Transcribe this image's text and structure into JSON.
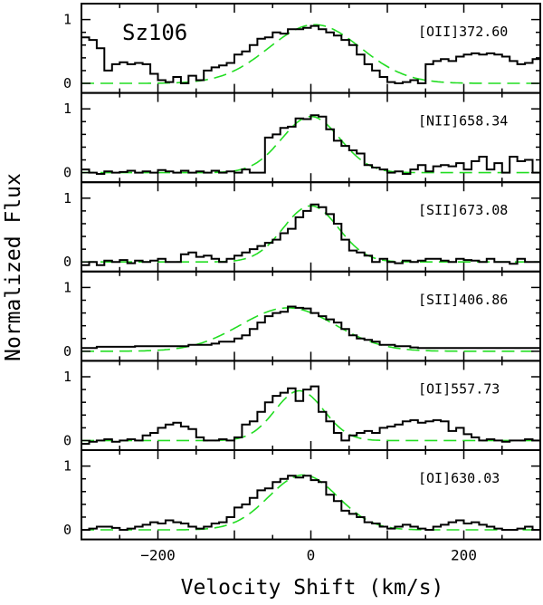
{
  "chart_data": {
    "type": "line",
    "object_label": "Sz106",
    "xlabel": "Velocity Shift (km/s)",
    "ylabel": "Normalized Flux",
    "xlim": [
      -300,
      300
    ],
    "x_ticks": [
      -200,
      0,
      200
    ],
    "x_tick_labels": [
      "−200",
      "0",
      "200"
    ],
    "y_ticks": [
      0,
      1
    ],
    "y_tick_labels": [
      "0",
      "1"
    ],
    "colors": {
      "observed": "#000000",
      "fit": "#22dd22"
    },
    "panels": [
      {
        "line": "[OII]372.60",
        "ylim": [
          -0.15,
          1.25
        ],
        "fit": {
          "amplitude": 0.92,
          "center": 5,
          "sigma": 60
        },
        "observed": {
          "x": [
            -300,
            -290,
            -280,
            -270,
            -260,
            -250,
            -240,
            -230,
            -220,
            -210,
            -200,
            -190,
            -180,
            -170,
            -160,
            -150,
            -140,
            -130,
            -120,
            -110,
            -100,
            -90,
            -80,
            -70,
            -60,
            -50,
            -40,
            -30,
            -20,
            -10,
            0,
            10,
            20,
            30,
            40,
            50,
            60,
            70,
            80,
            90,
            100,
            110,
            120,
            130,
            140,
            150,
            160,
            170,
            180,
            190,
            200,
            210,
            220,
            230,
            240,
            250,
            260,
            270,
            280,
            290
          ],
          "y": [
            0.72,
            0.68,
            0.55,
            0.2,
            0.3,
            0.33,
            0.3,
            0.32,
            0.3,
            0.15,
            0.05,
            0.02,
            0.1,
            0.0,
            0.12,
            0.05,
            0.2,
            0.25,
            0.28,
            0.32,
            0.45,
            0.5,
            0.6,
            0.7,
            0.72,
            0.8,
            0.78,
            0.85,
            0.85,
            0.87,
            0.9,
            0.85,
            0.8,
            0.75,
            0.68,
            0.6,
            0.45,
            0.3,
            0.2,
            0.1,
            0.02,
            0.0,
            0.02,
            0.05,
            0.0,
            0.3,
            0.35,
            0.38,
            0.35,
            0.42,
            0.45,
            0.47,
            0.45,
            0.47,
            0.45,
            0.42,
            0.35,
            0.3,
            0.32,
            0.38
          ]
        }
      },
      {
        "line": "[NII]658.34",
        "ylim": [
          -0.15,
          1.25
        ],
        "fit": {
          "amplitude": 0.88,
          "center": 0,
          "sigma": 38
        },
        "observed": {
          "x": [
            -300,
            -290,
            -280,
            -270,
            -260,
            -250,
            -240,
            -230,
            -220,
            -210,
            -200,
            -190,
            -180,
            -170,
            -160,
            -150,
            -140,
            -130,
            -120,
            -110,
            -100,
            -90,
            -80,
            -70,
            -60,
            -50,
            -40,
            -30,
            -20,
            -10,
            0,
            10,
            20,
            30,
            40,
            50,
            60,
            70,
            80,
            90,
            100,
            110,
            120,
            130,
            140,
            150,
            160,
            170,
            180,
            190,
            200,
            210,
            220,
            230,
            240,
            250,
            260,
            270,
            280,
            290
          ],
          "y": [
            0.05,
            0.0,
            -0.02,
            0.02,
            0.0,
            0.01,
            0.03,
            0.0,
            0.02,
            0.0,
            0.04,
            0.02,
            0.0,
            0.03,
            0.0,
            0.02,
            0.0,
            0.03,
            0.0,
            0.02,
            0.0,
            0.05,
            0.0,
            0.0,
            0.55,
            0.6,
            0.7,
            0.72,
            0.85,
            0.84,
            0.9,
            0.88,
            0.68,
            0.5,
            0.42,
            0.35,
            0.3,
            0.12,
            0.08,
            0.05,
            0.0,
            0.02,
            -0.02,
            0.05,
            0.12,
            0.02,
            0.1,
            0.12,
            0.1,
            0.15,
            0.05,
            0.18,
            0.25,
            0.05,
            0.15,
            0.0,
            0.25,
            0.18,
            0.2,
            0.0
          ]
        }
      },
      {
        "line": "[SII]673.08",
        "ylim": [
          -0.15,
          1.25
        ],
        "fit": {
          "amplitude": 0.88,
          "center": 0,
          "sigma": 36
        },
        "observed": {
          "x": [
            -300,
            -290,
            -280,
            -270,
            -260,
            -250,
            -240,
            -230,
            -220,
            -210,
            -200,
            -190,
            -180,
            -170,
            -160,
            -150,
            -140,
            -130,
            -120,
            -110,
            -100,
            -90,
            -80,
            -70,
            -60,
            -50,
            -40,
            -30,
            -20,
            -10,
            0,
            10,
            20,
            30,
            40,
            50,
            60,
            70,
            80,
            90,
            100,
            110,
            120,
            130,
            140,
            150,
            160,
            170,
            180,
            190,
            200,
            210,
            220,
            230,
            240,
            250,
            260,
            270,
            280,
            290
          ],
          "y": [
            -0.05,
            0.0,
            -0.05,
            0.02,
            0.0,
            0.03,
            -0.02,
            0.02,
            0.0,
            0.02,
            0.05,
            0.0,
            0.0,
            0.12,
            0.15,
            0.08,
            0.1,
            0.05,
            0.0,
            0.05,
            0.1,
            0.15,
            0.2,
            0.25,
            0.3,
            0.35,
            0.45,
            0.52,
            0.7,
            0.8,
            0.9,
            0.86,
            0.75,
            0.6,
            0.35,
            0.18,
            0.15,
            0.1,
            0.0,
            0.05,
            0.0,
            -0.02,
            0.02,
            0.0,
            0.02,
            0.05,
            0.05,
            0.02,
            0.0,
            0.05,
            0.03,
            0.02,
            0.0,
            0.05,
            0.0,
            0.0,
            -0.03,
            0.05,
            0.0,
            0.0
          ]
        }
      },
      {
        "line": "[SII]406.86",
        "ylim": [
          -0.15,
          1.25
        ],
        "fit": {
          "amplitude": 0.68,
          "center": -30,
          "sigma": 62
        },
        "observed": {
          "x": [
            -300,
            -290,
            -280,
            -270,
            -260,
            -250,
            -240,
            -230,
            -220,
            -210,
            -200,
            -190,
            -180,
            -170,
            -160,
            -150,
            -140,
            -130,
            -120,
            -110,
            -100,
            -90,
            -80,
            -70,
            -60,
            -50,
            -40,
            -30,
            -20,
            -10,
            0,
            10,
            20,
            30,
            40,
            50,
            60,
            70,
            80,
            90,
            100,
            110,
            120,
            130,
            140,
            150,
            160,
            170,
            180,
            190,
            200,
            210,
            220,
            230,
            240,
            250,
            260,
            270,
            280,
            290
          ],
          "y": [
            0.05,
            0.05,
            0.07,
            0.07,
            0.07,
            0.07,
            0.07,
            0.08,
            0.08,
            0.08,
            0.08,
            0.08,
            0.08,
            0.08,
            0.1,
            0.1,
            0.1,
            0.12,
            0.15,
            0.15,
            0.2,
            0.25,
            0.35,
            0.45,
            0.55,
            0.6,
            0.62,
            0.7,
            0.68,
            0.67,
            0.6,
            0.55,
            0.5,
            0.45,
            0.35,
            0.25,
            0.2,
            0.18,
            0.15,
            0.1,
            0.1,
            0.08,
            0.08,
            0.06,
            0.05,
            0.05,
            0.05,
            0.05,
            0.05,
            0.05,
            0.05,
            0.05,
            0.05,
            0.05,
            0.05,
            0.05,
            0.05,
            0.05,
            0.05,
            0.05
          ]
        }
      },
      {
        "line": "[OI]557.73",
        "ylim": [
          -0.15,
          1.25
        ],
        "fit": {
          "amplitude": 0.78,
          "center": -15,
          "sigma": 32
        },
        "observed": {
          "x": [
            -300,
            -290,
            -280,
            -270,
            -260,
            -250,
            -240,
            -230,
            -220,
            -210,
            -200,
            -190,
            -180,
            -170,
            -160,
            -150,
            -140,
            -130,
            -120,
            -110,
            -100,
            -90,
            -80,
            -70,
            -60,
            -50,
            -40,
            -30,
            -20,
            -10,
            0,
            10,
            20,
            30,
            40,
            50,
            60,
            70,
            80,
            90,
            100,
            110,
            120,
            130,
            140,
            150,
            160,
            170,
            180,
            190,
            200,
            210,
            220,
            230,
            240,
            250,
            260,
            270,
            280,
            290
          ],
          "y": [
            -0.05,
            -0.02,
            0.0,
            0.02,
            -0.02,
            0.0,
            0.02,
            0.0,
            0.08,
            0.12,
            0.2,
            0.25,
            0.28,
            0.22,
            0.18,
            0.05,
            0.0,
            0.0,
            0.02,
            0.0,
            0.05,
            0.25,
            0.3,
            0.45,
            0.6,
            0.7,
            0.75,
            0.82,
            0.62,
            0.8,
            0.85,
            0.45,
            0.3,
            0.12,
            0.0,
            0.08,
            0.12,
            0.15,
            0.12,
            0.2,
            0.22,
            0.25,
            0.3,
            0.32,
            0.28,
            0.3,
            0.32,
            0.3,
            0.15,
            0.2,
            0.1,
            0.05,
            0.0,
            0.02,
            0.0,
            -0.02,
            0.0,
            0.0,
            0.02,
            0.0
          ]
        }
      },
      {
        "line": "[OI]630.03",
        "ylim": [
          -0.15,
          1.25
        ],
        "fit": {
          "amplitude": 0.86,
          "center": -10,
          "sigma": 45
        },
        "observed": {
          "x": [
            -300,
            -290,
            -280,
            -270,
            -260,
            -250,
            -240,
            -230,
            -220,
            -210,
            -200,
            -190,
            -180,
            -170,
            -160,
            -150,
            -140,
            -130,
            -120,
            -110,
            -100,
            -90,
            -80,
            -70,
            -60,
            -50,
            -40,
            -30,
            -20,
            -10,
            0,
            10,
            20,
            30,
            40,
            50,
            60,
            70,
            80,
            90,
            100,
            110,
            120,
            130,
            140,
            150,
            160,
            170,
            180,
            190,
            200,
            210,
            220,
            230,
            240,
            250,
            260,
            270,
            280,
            290
          ],
          "y": [
            0.0,
            0.02,
            0.05,
            0.05,
            0.03,
            0.0,
            0.02,
            0.05,
            0.08,
            0.12,
            0.1,
            0.15,
            0.12,
            0.1,
            0.05,
            0.02,
            0.05,
            0.1,
            0.12,
            0.2,
            0.35,
            0.4,
            0.5,
            0.62,
            0.65,
            0.75,
            0.8,
            0.85,
            0.82,
            0.85,
            0.78,
            0.75,
            0.55,
            0.45,
            0.3,
            0.25,
            0.2,
            0.12,
            0.1,
            0.05,
            0.02,
            0.05,
            0.08,
            0.05,
            0.02,
            0.0,
            0.05,
            0.08,
            0.12,
            0.15,
            0.1,
            0.12,
            0.08,
            0.05,
            0.02,
            0.0,
            0.0,
            0.02,
            0.05,
            0.0
          ]
        }
      }
    ]
  }
}
